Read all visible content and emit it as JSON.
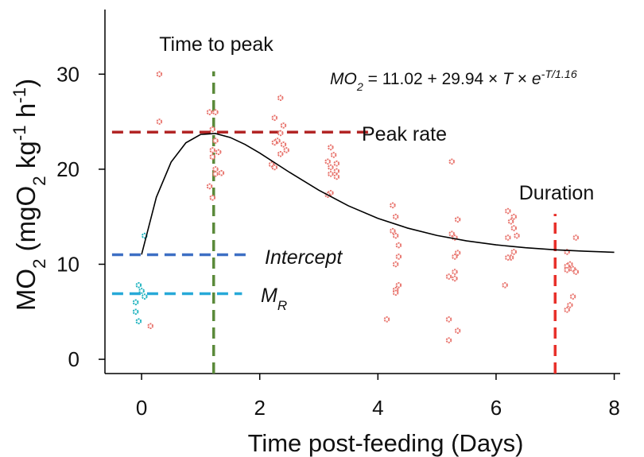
{
  "chart_data": {
    "type": "scatter",
    "xlabel": [
      {
        "text": "Time post-feeding (Days)",
        "pos": "normal"
      }
    ],
    "ylabel": [
      {
        "text": "MO",
        "pos": "normal"
      },
      {
        "text": "2",
        "pos": "sub"
      },
      {
        "text": " (mgO",
        "pos": "normal"
      },
      {
        "text": "2",
        "pos": "sub"
      },
      {
        "text": " kg",
        "pos": "normal"
      },
      {
        "text": "-1",
        "pos": "sup"
      },
      {
        "text": " h",
        "pos": "normal"
      },
      {
        "text": "-1",
        "pos": "sup"
      },
      {
        "text": ")",
        "pos": "normal"
      }
    ],
    "equation": [
      {
        "text": "MO",
        "pos": "italic"
      },
      {
        "text": "2",
        "pos": "italic-sub"
      },
      {
        "text": " = 11.02 + 29.94 × ",
        "pos": "normal"
      },
      {
        "text": "T",
        "pos": "italic"
      },
      {
        "text": " × ",
        "pos": "normal"
      },
      {
        "text": "e",
        "pos": "italic"
      },
      {
        "text": "-T/1.16",
        "pos": "italic-sup"
      }
    ],
    "xlim": [
      -0.62,
      8.1
    ],
    "ylim": [
      -1.5,
      36.8
    ],
    "xticks": [
      0,
      2,
      4,
      6,
      8
    ],
    "yticks": [
      0,
      10,
      20,
      30
    ],
    "grid": false,
    "series": [
      {
        "mode": "markers",
        "color": "#1fb3bf",
        "x": [
          0.05,
          -0.05,
          0.0,
          0.05,
          -0.1,
          -0.1,
          -0.05
        ],
        "values": [
          13,
          7.8,
          7.2,
          6.6,
          6.0,
          5.0,
          4.0
        ]
      },
      {
        "mode": "markers",
        "color": "#e8736c",
        "x": [
          0.15,
          0.3,
          0.3,
          1.15,
          1.25,
          1.2,
          1.25,
          1.2,
          1.3,
          1.2,
          1.25,
          1.35,
          1.25,
          1.15,
          1.2,
          2.35,
          2.25,
          2.4,
          2.35,
          2.3,
          2.25,
          2.4,
          2.45,
          2.35,
          2.2,
          2.25,
          3.2,
          3.25,
          3.15,
          3.3,
          3.2,
          3.3,
          3.2,
          3.3,
          3.2,
          3.15,
          4.25,
          4.3,
          4.25,
          4.3,
          4.35,
          4.35,
          4.3,
          4.35,
          4.3,
          4.3,
          4.15,
          5.25,
          5.35,
          5.25,
          5.3,
          5.35,
          5.3,
          5.3,
          5.2,
          5.3,
          5.2,
          5.35,
          5.2,
          6.2,
          6.3,
          6.25,
          6.3,
          6.35,
          6.2,
          6.3,
          6.25,
          6.2,
          6.15,
          7.35,
          7.2,
          7.25,
          7.2,
          7.3,
          7.2,
          7.35,
          7.3,
          7.25,
          7.2
        ],
        "values": [
          3.5,
          30,
          25,
          26,
          26,
          24.2,
          23,
          22,
          21.8,
          21.3,
          20,
          19.6,
          19.5,
          18.2,
          17,
          27.5,
          25.4,
          24.6,
          23.8,
          23,
          22.8,
          22.6,
          22,
          21.6,
          20.5,
          20.2,
          22.3,
          21.5,
          20.8,
          20.6,
          20.2,
          19.8,
          19.5,
          19.2,
          17.5,
          17.3,
          16.2,
          15,
          13.5,
          13,
          12,
          10.8,
          10,
          7.8,
          7.3,
          7,
          4.2,
          20.8,
          14.7,
          13.2,
          12.8,
          11.2,
          10.8,
          9.2,
          8.7,
          8.5,
          4.2,
          3,
          2,
          15.6,
          15,
          14.5,
          13.8,
          13,
          12.8,
          11.3,
          10.7,
          10.7,
          7.8,
          12.8,
          11.3,
          10,
          9.8,
          9.5,
          9.4,
          9.2,
          6.6,
          5.7,
          5.2
        ]
      },
      {
        "mode": "line",
        "color": "#000000",
        "x": [
          0,
          0.25,
          0.5,
          0.75,
          1,
          1.25,
          1.5,
          1.75,
          2,
          2.5,
          3,
          3.5,
          4,
          4.5,
          5,
          5.5,
          6,
          6.5,
          7,
          7.5,
          8
        ],
        "values": [
          11.02,
          17.05,
          20.75,
          22.78,
          23.66,
          23.76,
          23.34,
          22.61,
          21.7,
          19.69,
          17.79,
          16.15,
          14.83,
          13.81,
          13.03,
          12.46,
          12.04,
          11.74,
          11.52,
          11.37,
          11.26
        ]
      }
    ],
    "reference_lines": [
      {
        "orientation": "vertical",
        "value": 1.22,
        "color": "#5b8a3a",
        "label": [
          {
            "text": "Time to peak",
            "pos": "normal"
          }
        ]
      },
      {
        "orientation": "horizontal",
        "value": 23.9,
        "color": "#b22525",
        "label": [
          {
            "text": "Peak rate",
            "pos": "normal"
          }
        ]
      },
      {
        "orientation": "vertical",
        "value": 7.0,
        "color": "#e8302a",
        "label": [
          {
            "text": "Duration",
            "pos": "normal"
          }
        ]
      },
      {
        "orientation": "horizontal",
        "value": 11.0,
        "color": "#3d6fc4",
        "label": [
          {
            "text": "Intercept",
            "pos": "italic"
          }
        ]
      },
      {
        "orientation": "horizontal",
        "value": 6.9,
        "color": "#27a9d8",
        "label": [
          {
            "text": "M",
            "pos": "italic"
          },
          {
            "text": "R",
            "pos": "italic-sub"
          }
        ]
      }
    ]
  }
}
